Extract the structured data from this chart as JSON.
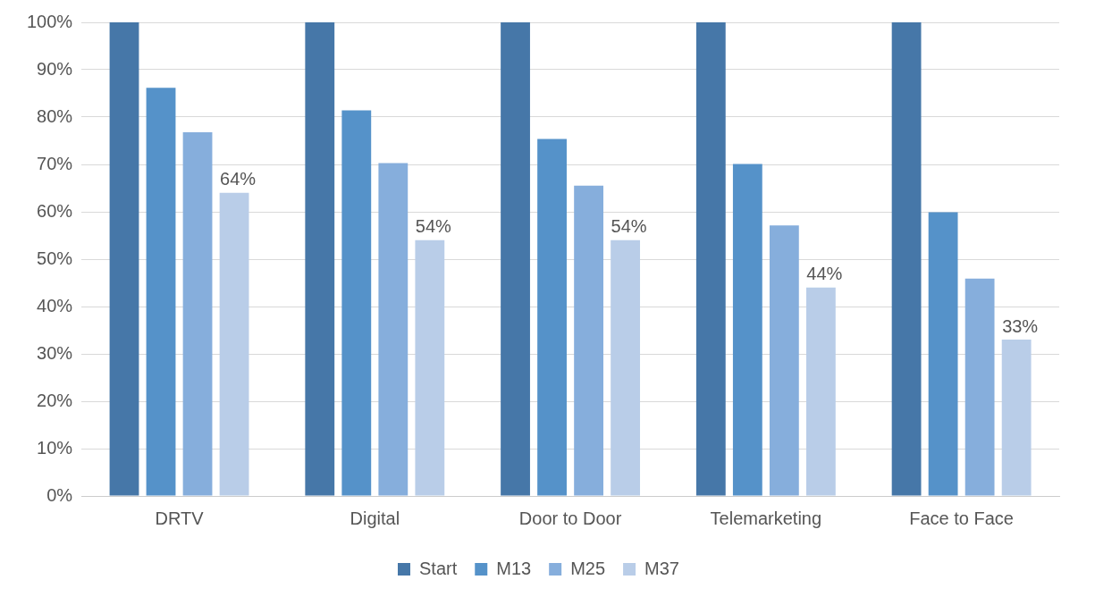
{
  "chart_data": {
    "type": "bar",
    "categories": [
      "DRTV",
      "Digital",
      "Door to Door",
      "Telemarketing",
      "Face to Face"
    ],
    "series": [
      {
        "name": "Start",
        "color": "#4677a8",
        "values": [
          100,
          100,
          100,
          100,
          100
        ]
      },
      {
        "name": "M13",
        "color": "#5592c9",
        "values": [
          86.2,
          81.4,
          75.4,
          70.1,
          59.9
        ]
      },
      {
        "name": "M25",
        "color": "#86aedc",
        "values": [
          76.8,
          70.3,
          65.5,
          57.1,
          45.9
        ]
      },
      {
        "name": "M37",
        "color": "#b9cde8",
        "values": [
          64,
          54,
          54,
          44,
          33
        ],
        "value_labels": [
          "64%",
          "54%",
          "54%",
          "44%",
          "33%"
        ]
      }
    ],
    "ylim": [
      0,
      100
    ],
    "yticks": [
      {
        "value": 0,
        "label": "0%"
      },
      {
        "value": 10,
        "label": "10%"
      },
      {
        "value": 20,
        "label": "20%"
      },
      {
        "value": 30,
        "label": "30%"
      },
      {
        "value": 40,
        "label": "40%"
      },
      {
        "value": 50,
        "label": "50%"
      },
      {
        "value": 60,
        "label": "60%"
      },
      {
        "value": 70,
        "label": "70%"
      },
      {
        "value": 80,
        "label": "80%"
      },
      {
        "value": 90,
        "label": "90%"
      },
      {
        "value": 100,
        "label": "100%"
      }
    ],
    "grid": "y",
    "legend": "bottom"
  }
}
